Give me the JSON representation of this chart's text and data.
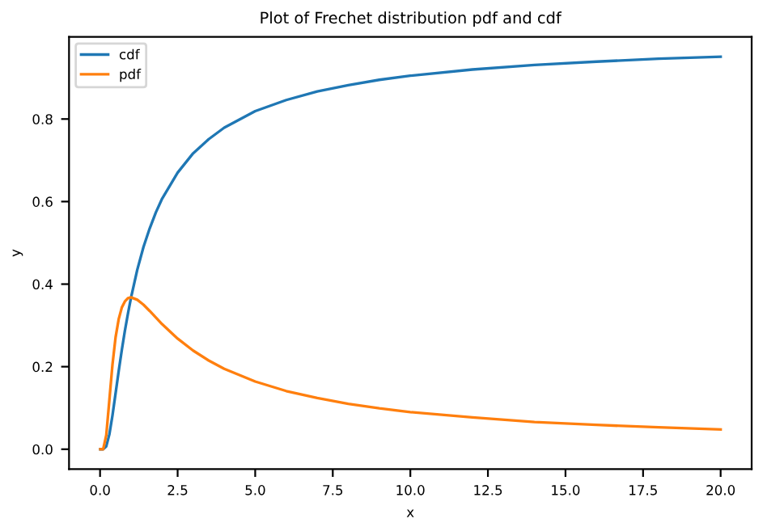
{
  "chart_data": {
    "type": "line",
    "title": "Plot of Frechet distribution pdf and cdf",
    "xlabel": "x",
    "ylabel": "y",
    "x": [
      0.01,
      0.1,
      0.2,
      0.3,
      0.4,
      0.5,
      0.6,
      0.7,
      0.8,
      0.9,
      1.0,
      1.2,
      1.4,
      1.6,
      1.8,
      2,
      2.5,
      3,
      3.5,
      4,
      5,
      6,
      7,
      8,
      9,
      10,
      12,
      14,
      16,
      18,
      20
    ],
    "series": [
      {
        "name": "cdf",
        "color": "#1f77b4",
        "values": [
          0.0,
          0.0,
          0.007,
          0.036,
          0.082,
          0.135,
          0.189,
          0.24,
          0.287,
          0.329,
          0.368,
          0.435,
          0.49,
          0.535,
          0.574,
          0.607,
          0.67,
          0.717,
          0.751,
          0.779,
          0.819,
          0.846,
          0.867,
          0.882,
          0.895,
          0.905,
          0.92,
          0.931,
          0.939,
          0.946,
          0.951
        ]
      },
      {
        "name": "pdf",
        "color": "#ff7f0e",
        "values": [
          0.0,
          0.0,
          0.034,
          0.119,
          0.205,
          0.271,
          0.315,
          0.343,
          0.358,
          0.366,
          0.368,
          0.362,
          0.35,
          0.335,
          0.319,
          0.303,
          0.268,
          0.239,
          0.215,
          0.195,
          0.164,
          0.141,
          0.124,
          0.11,
          0.099,
          0.09,
          0.077,
          0.066,
          0.059,
          0.053,
          0.048
        ]
      }
    ],
    "xlim": [
      -1,
      21
    ],
    "ylim": [
      -0.048,
      0.999
    ],
    "xticks": [
      {
        "value": 0,
        "label": "0.0"
      },
      2.5,
      {
        "value": 5,
        "label": "5.0"
      },
      7.5,
      {
        "value": 10,
        "label": "10.0"
      },
      12.5,
      {
        "value": 15,
        "label": "15.0"
      },
      17.5,
      {
        "value": 20,
        "label": "20.0"
      }
    ],
    "yticks": [
      {
        "value": 0,
        "label": "0.0"
      },
      0.2,
      0.4,
      0.6,
      0.8
    ],
    "legend": "top left",
    "grid": false,
    "marker": "none",
    "line_style": "solid"
  }
}
